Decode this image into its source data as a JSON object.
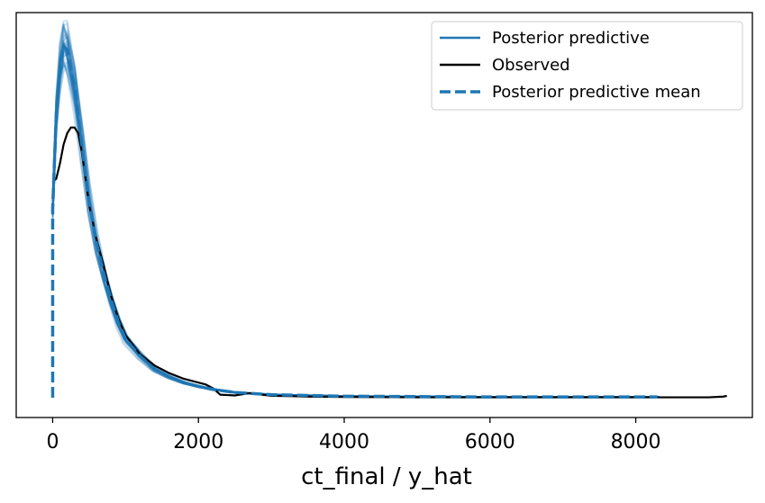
{
  "chart_data": {
    "type": "line",
    "title": "",
    "xlabel": "ct_final / y_hat",
    "ylabel": "",
    "xlim": [
      -500,
      9600
    ],
    "ylim": [
      0,
      1.0
    ],
    "xticks": [
      0,
      2000,
      4000,
      6000,
      8000
    ],
    "xtick_labels": [
      "0",
      "2000",
      "4000",
      "6000",
      "8000"
    ],
    "y_ticks_visible": false,
    "grid": false,
    "legend_position": "top-right",
    "colors": {
      "posterior": "#1f77b4",
      "observed": "#000000",
      "mean": "#1f77b4"
    },
    "series": [
      {
        "name": "Posterior predictive",
        "style": "solid",
        "draws": 40,
        "x": [
          0,
          50,
          100,
          150,
          200,
          300,
          400,
          500,
          600,
          700,
          800,
          900,
          1000,
          1200,
          1400,
          1600,
          1800,
          2000,
          2200,
          2500,
          3000,
          3500,
          4000,
          5000,
          6000,
          7000,
          8000,
          8300
        ],
        "y": [
          0.5,
          0.75,
          0.87,
          0.93,
          0.92,
          0.82,
          0.67,
          0.52,
          0.41,
          0.33,
          0.26,
          0.2,
          0.155,
          0.11,
          0.075,
          0.055,
          0.04,
          0.03,
          0.022,
          0.014,
          0.008,
          0.006,
          0.004,
          0.003,
          0.002,
          0.002,
          0.002,
          0.002
        ]
      },
      {
        "name": "Observed",
        "style": "solid",
        "x": [
          0,
          50,
          100,
          150,
          200,
          250,
          300,
          350,
          400,
          450,
          500,
          600,
          700,
          800,
          900,
          1000,
          1200,
          1400,
          1600,
          1800,
          2000,
          2100,
          2200,
          2300,
          2500,
          2700,
          3000,
          3300,
          3500,
          4000,
          5000,
          6000,
          7000,
          8000,
          9000,
          9200,
          9250
        ],
        "y": [
          0.57,
          0.58,
          0.62,
          0.67,
          0.7,
          0.715,
          0.715,
          0.7,
          0.65,
          0.58,
          0.51,
          0.42,
          0.35,
          0.27,
          0.21,
          0.165,
          0.115,
          0.085,
          0.065,
          0.05,
          0.04,
          0.035,
          0.025,
          0.008,
          0.006,
          0.012,
          0.005,
          0.004,
          0.003,
          0.002,
          0.001,
          0.001,
          0.001,
          0.001,
          0.001,
          0.003,
          0.005
        ]
      },
      {
        "name": "Posterior predictive mean",
        "style": "dashed",
        "x": [
          0,
          0,
          50,
          100,
          150,
          200,
          300,
          400,
          500,
          600,
          700,
          800,
          900,
          1000,
          1200,
          1400,
          1600,
          1800,
          2000,
          2200,
          2500,
          3000,
          3500,
          4000,
          5000,
          6000,
          7000,
          8000,
          8300
        ],
        "y": [
          0.0,
          0.5,
          0.75,
          0.87,
          0.93,
          0.92,
          0.82,
          0.67,
          0.52,
          0.41,
          0.33,
          0.26,
          0.2,
          0.155,
          0.11,
          0.075,
          0.055,
          0.04,
          0.03,
          0.022,
          0.014,
          0.008,
          0.006,
          0.004,
          0.003,
          0.002,
          0.002,
          0.002,
          0.002
        ]
      }
    ]
  }
}
